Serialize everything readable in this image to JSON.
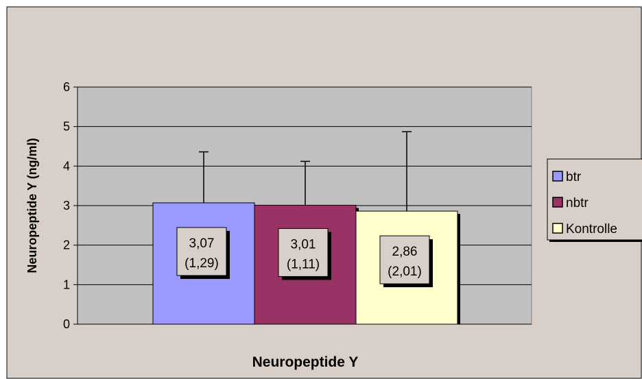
{
  "chart_data": {
    "type": "bar",
    "xlabel": "Neuropeptide Y",
    "ylabel": "Neuropeptide Y (ng/ml)",
    "ylim": [
      0,
      6
    ],
    "yticks": [
      0,
      1,
      2,
      3,
      4,
      5,
      6
    ],
    "grid": true,
    "legend_position": "right",
    "categories": [
      "Neuropeptide Y"
    ],
    "series": [
      {
        "name": "btr",
        "value": 3.07,
        "error": 1.29,
        "color": "#9999ff",
        "label_line1": "3,07",
        "label_line2": "(1,29)"
      },
      {
        "name": "nbtr",
        "value": 3.01,
        "error": 1.11,
        "color": "#993366",
        "label_line1": "3,01",
        "label_line2": "(1,11)"
      },
      {
        "name": "Kontrolle",
        "value": 2.86,
        "error": 2.01,
        "color": "#ffffcc",
        "label_line1": "2,86",
        "label_line2": "(2,01)"
      }
    ],
    "colors": {
      "chart_background": "#d8d0c8",
      "plot_background": "#c0c0c0",
      "label_box": "#d8d0c8"
    }
  }
}
